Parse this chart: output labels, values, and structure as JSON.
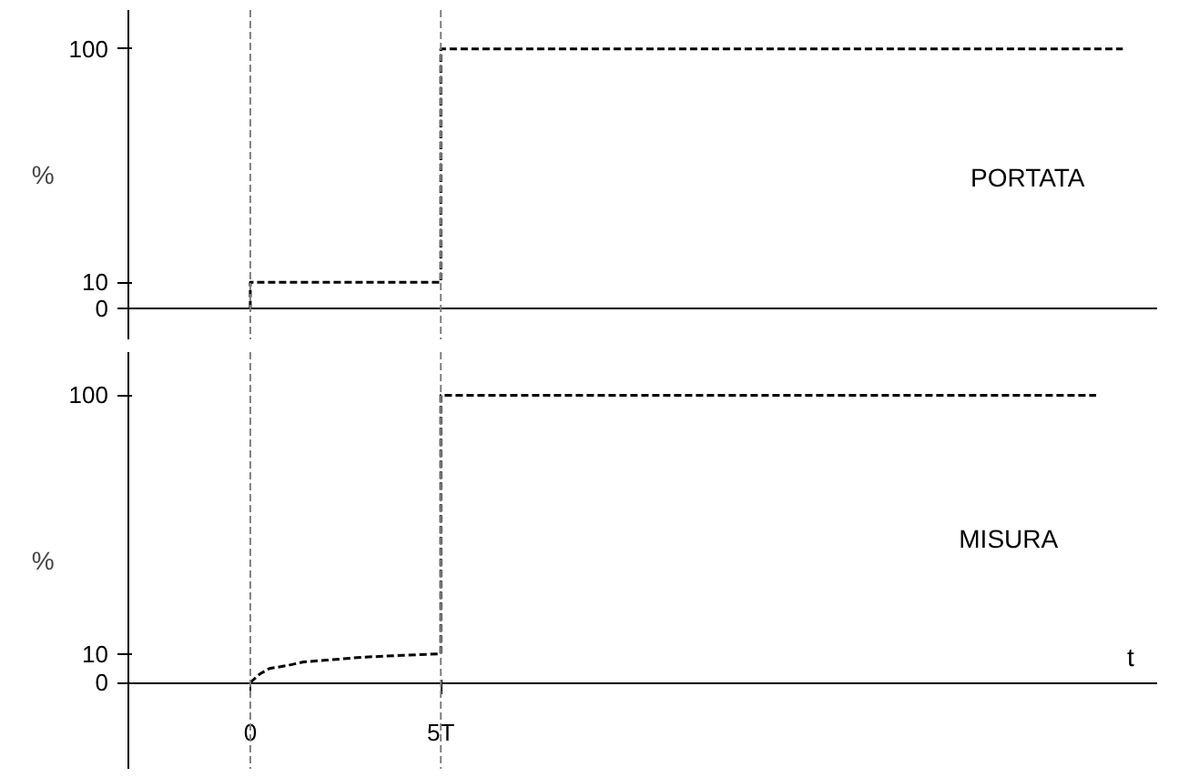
{
  "chart_data": [
    {
      "type": "line",
      "ylabel": "%",
      "xlim": [
        -3.2,
        23.8
      ],
      "ylim": [
        -12,
        115
      ],
      "yticks": [
        0,
        10,
        100
      ],
      "tick_labels": "y",
      "line_style": "dashed",
      "series": [
        {
          "name": "PORTATA",
          "color": "#000000",
          "x": [
            0,
            0,
            5,
            5,
            22.9
          ],
          "values": [
            0,
            10,
            10,
            100,
            100
          ]
        }
      ],
      "ref_lines": [
        {
          "axis": "x",
          "value": 0,
          "color": "#808080",
          "line_style": "dashed"
        },
        {
          "axis": "x",
          "value": 5,
          "color": "#808080",
          "line_style": "dashed"
        }
      ]
    },
    {
      "type": "line",
      "ylabel": "%",
      "xlabel": "t",
      "xlim": [
        -3.2,
        23.8
      ],
      "ylim": [
        -30,
        115
      ],
      "xticks": [
        {
          "value": 0,
          "label": "0"
        },
        {
          "value": 5,
          "label": "5T"
        }
      ],
      "yticks": [
        0,
        10,
        100
      ],
      "line_style": "dashed",
      "series": [
        {
          "name": "MISURA",
          "color": "#000000",
          "x": [
            0,
            0.25,
            0.5,
            1,
            1.4,
            2,
            2.9,
            4,
            5,
            5,
            22.2
          ],
          "values": [
            0,
            3,
            4.9,
            6,
            7.2,
            7.8,
            8.8,
            9.5,
            10,
            100,
            100
          ]
        }
      ],
      "ref_lines": [
        {
          "axis": "x",
          "value": 0,
          "color": "#808080",
          "line_style": "dashed"
        },
        {
          "axis": "x",
          "value": 5,
          "color": "#808080",
          "line_style": "dashed"
        }
      ]
    }
  ]
}
